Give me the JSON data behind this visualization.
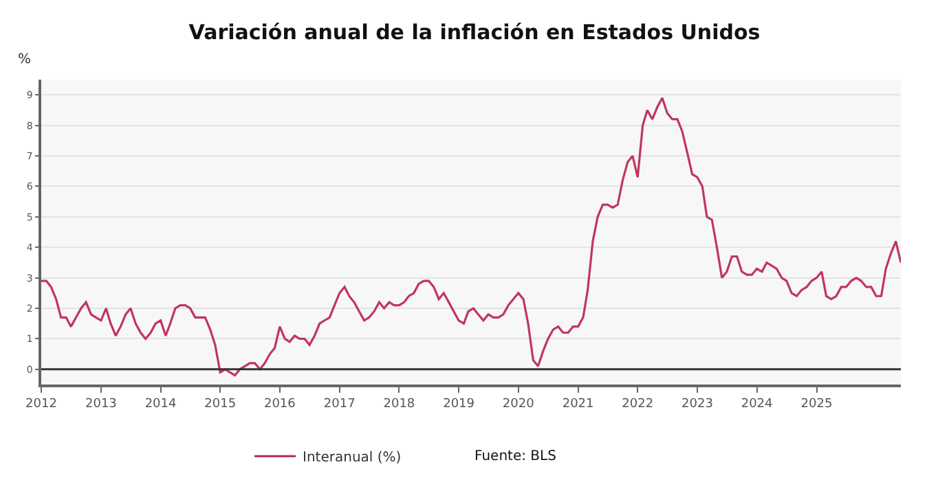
{
  "chart_data": {
    "type": "line",
    "title": "Variación anual de la inflación en Estados Unidos",
    "ylabel": "%",
    "annotations": [
      "Fuente: BLS"
    ],
    "x": [
      "2012-01",
      "2012-02",
      "2012-03",
      "2012-04",
      "2012-05",
      "2012-06",
      "2012-07",
      "2012-08",
      "2012-09",
      "2012-10",
      "2012-11",
      "2012-12",
      "2013-01",
      "2013-02",
      "2013-03",
      "2013-04",
      "2013-05",
      "2013-06",
      "2013-07",
      "2013-08",
      "2013-09",
      "2013-10",
      "2013-11",
      "2013-12",
      "2014-01",
      "2014-02",
      "2014-03",
      "2014-04",
      "2014-05",
      "2014-06",
      "2014-07",
      "2014-08",
      "2014-09",
      "2014-10",
      "2014-11",
      "2014-12",
      "2015-01",
      "2015-02",
      "2015-03",
      "2015-04",
      "2015-05",
      "2015-06",
      "2015-07",
      "2015-08",
      "2015-09",
      "2015-10",
      "2015-11",
      "2015-12",
      "2016-01",
      "2016-02",
      "2016-03",
      "2016-04",
      "2016-05",
      "2016-06",
      "2016-07",
      "2016-08",
      "2016-09",
      "2016-10",
      "2016-11",
      "2016-12",
      "2017-01",
      "2017-02",
      "2017-03",
      "2017-04",
      "2017-05",
      "2017-06",
      "2017-07",
      "2017-08",
      "2017-09",
      "2017-10",
      "2017-11",
      "2017-12",
      "2018-01",
      "2018-02",
      "2018-03",
      "2018-04",
      "2018-05",
      "2018-06",
      "2018-07",
      "2018-08",
      "2018-09",
      "2018-10",
      "2018-11",
      "2018-12",
      "2019-01",
      "2019-02",
      "2019-03",
      "2019-04",
      "2019-05",
      "2019-06",
      "2019-07",
      "2019-08",
      "2019-09",
      "2019-10",
      "2019-11",
      "2019-12",
      "2020-01",
      "2020-02",
      "2020-03",
      "2020-04",
      "2020-05",
      "2020-06",
      "2020-07",
      "2020-08",
      "2020-09",
      "2020-10",
      "2020-11",
      "2020-12",
      "2021-01",
      "2021-02",
      "2021-03",
      "2021-04",
      "2021-05",
      "2021-06",
      "2021-07",
      "2021-08",
      "2021-09",
      "2021-10",
      "2021-11",
      "2021-12",
      "2022-01",
      "2022-02",
      "2022-03",
      "2022-04",
      "2022-05",
      "2022-06",
      "2022-07",
      "2022-08",
      "2022-09",
      "2022-10",
      "2022-11",
      "2022-12",
      "2023-01",
      "2023-02",
      "2023-03",
      "2023-04",
      "2023-05",
      "2023-06",
      "2023-07",
      "2023-08",
      "2023-09",
      "2023-10",
      "2023-11",
      "2023-12",
      "2024-01",
      "2024-02",
      "2024-03",
      "2024-04",
      "2024-05",
      "2024-06",
      "2024-07",
      "2024-08",
      "2024-09",
      "2024-10",
      "2024-11",
      "2024-12",
      "2025-01",
      "2025-02",
      "2025-03",
      "2025-04",
      "2025-05",
      "2025-06",
      "2025-07",
      "2025-08",
      "2025-09",
      "2025-10",
      "2025-11",
      "2025-12",
      "2026-01",
      "2026-02",
      "2026-03",
      "2026-04",
      "2026-05",
      "2026-06"
    ],
    "series": [
      {
        "name": "Interanual (%)",
        "color": "#c0365f",
        "values": [
          2.9,
          2.9,
          2.7,
          2.3,
          1.7,
          1.7,
          1.4,
          1.7,
          2.0,
          2.2,
          1.8,
          1.7,
          1.6,
          2.0,
          1.5,
          1.1,
          1.4,
          1.8,
          2.0,
          1.5,
          1.2,
          1.0,
          1.2,
          1.5,
          1.6,
          1.1,
          1.5,
          2.0,
          2.1,
          2.1,
          2.0,
          1.7,
          1.7,
          1.7,
          1.3,
          0.8,
          -0.1,
          0.0,
          -0.1,
          -0.2,
          0.0,
          0.1,
          0.2,
          0.2,
          0.0,
          0.2,
          0.5,
          0.7,
          1.4,
          1.0,
          0.9,
          1.1,
          1.0,
          1.0,
          0.8,
          1.1,
          1.5,
          1.6,
          1.7,
          2.1,
          2.5,
          2.7,
          2.4,
          2.2,
          1.9,
          1.6,
          1.7,
          1.9,
          2.2,
          2.0,
          2.2,
          2.1,
          2.1,
          2.2,
          2.4,
          2.5,
          2.8,
          2.9,
          2.9,
          2.7,
          2.3,
          2.5,
          2.2,
          1.9,
          1.6,
          1.5,
          1.9,
          2.0,
          1.8,
          1.6,
          1.8,
          1.7,
          1.7,
          1.8,
          2.1,
          2.3,
          2.5,
          2.3,
          1.5,
          0.3,
          0.1,
          0.6,
          1.0,
          1.3,
          1.4,
          1.2,
          1.2,
          1.4,
          1.4,
          1.7,
          2.6,
          4.2,
          5.0,
          5.4,
          5.4,
          5.3,
          5.4,
          6.2,
          6.8,
          7.0,
          6.3,
          8.0,
          8.5,
          8.2,
          8.6,
          8.9,
          8.4,
          8.2,
          8.2,
          7.8,
          7.1,
          6.4,
          6.3,
          6.0,
          5.0,
          4.9,
          4.0,
          3.0,
          3.2,
          3.7,
          3.7,
          3.2,
          3.1,
          3.1,
          3.3,
          3.2,
          3.5,
          3.4,
          3.3,
          3.0,
          2.9,
          2.5,
          2.4,
          2.6,
          2.7,
          2.9,
          3.0,
          3.2,
          2.4,
          2.3,
          2.4,
          2.7,
          2.7,
          2.9,
          3.0,
          2.9,
          2.7,
          2.7,
          2.4,
          2.4,
          3.3,
          3.8,
          4.2,
          3.5
        ]
      }
    ],
    "xlim": [
      "2012-01",
      "2026-06"
    ],
    "xticks": [
      {
        "value": "2012-01",
        "label": "2012"
      },
      {
        "value": "2013-01",
        "label": "2013"
      },
      {
        "value": "2014-01",
        "label": "2014"
      },
      {
        "value": "2015-01",
        "label": "2015"
      },
      {
        "value": "2016-01",
        "label": "2016"
      },
      {
        "value": "2017-01",
        "label": "2017"
      },
      {
        "value": "2018-01",
        "label": "2018"
      },
      {
        "value": "2019-01",
        "label": "2019"
      },
      {
        "value": "2020-01",
        "label": "2020"
      },
      {
        "value": "2021-01",
        "label": "2021"
      },
      {
        "value": "2022-01",
        "label": "2022"
      },
      {
        "value": "2023-01",
        "label": "2023"
      },
      {
        "value": "2024-01",
        "label": "2024"
      },
      {
        "value": "2025-01",
        "label": "2025"
      }
    ],
    "ylim": [
      -0.5,
      9.5
    ],
    "yticks": [
      0,
      1,
      2,
      3,
      4,
      5,
      6,
      7,
      8,
      9
    ],
    "ref_lines": [
      {
        "axis": "y",
        "value": 0,
        "color": "#333333"
      }
    ],
    "grid": "y",
    "legend": "bottom",
    "marker": "none",
    "line_style": "solid"
  }
}
